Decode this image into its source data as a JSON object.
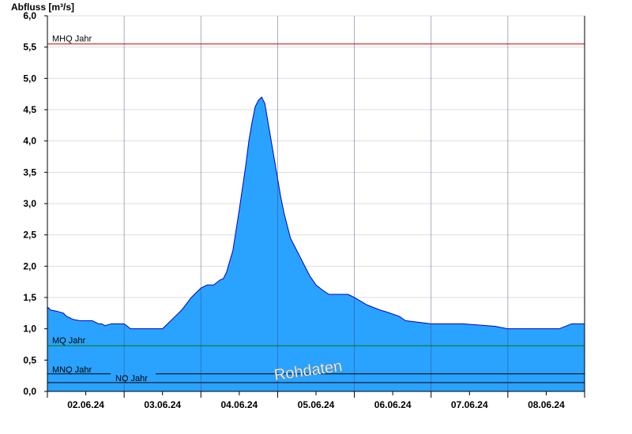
{
  "chart_data": {
    "type": "area",
    "ylabel": "Abfluss [m³/s]",
    "xlabel": "",
    "ylim": [
      0,
      6.0
    ],
    "yticks": [
      0.0,
      0.5,
      1.0,
      1.5,
      2.0,
      2.5,
      3.0,
      3.5,
      4.0,
      4.5,
      5.0,
      5.5,
      6.0
    ],
    "ytick_labels": [
      "0,0",
      "0,5",
      "1,0",
      "1,5",
      "2,0",
      "2,5",
      "3,0",
      "3,5",
      "4,0",
      "4,5",
      "5,0",
      "5,5",
      "6,0"
    ],
    "xlim_hours": [
      0,
      168
    ],
    "xtick_labels": [
      "02.06.24",
      "03.06.24",
      "04.06.24",
      "05.06.24",
      "06.06.24",
      "07.06.24",
      "08.06.24"
    ],
    "grid": true,
    "colors": {
      "area_fill": "#29a3ff",
      "area_line": "#0000cc",
      "mhq_line": "#cc0000",
      "mq_line": "#007a00",
      "nq_line": "#000000",
      "grid": "#dddddd"
    },
    "reference_lines": [
      {
        "label": "MHQ Jahr",
        "value": 5.55
      },
      {
        "label": "MQ Jahr",
        "value": 0.73
      },
      {
        "label": "MNQ Jahr",
        "value": 0.28
      },
      {
        "label": "NQ Jahr",
        "value": 0.14
      }
    ],
    "series": [
      {
        "x_hours": [
          0,
          1,
          3,
          5,
          6,
          8,
          10,
          14,
          16,
          17,
          18,
          20,
          24,
          26,
          28,
          30,
          33,
          36,
          40,
          42,
          45,
          48,
          50,
          52,
          54,
          55,
          56,
          58,
          60,
          62,
          63,
          64,
          65,
          66,
          67,
          68,
          69,
          70,
          71,
          72,
          73,
          74,
          75,
          76,
          78,
          80,
          82,
          84,
          86,
          88,
          90,
          92,
          94,
          96,
          100,
          104,
          106,
          110,
          112,
          120,
          130,
          140,
          144,
          160,
          164,
          168
        ],
        "values": [
          1.35,
          1.3,
          1.28,
          1.25,
          1.2,
          1.15,
          1.13,
          1.13,
          1.08,
          1.08,
          1.05,
          1.08,
          1.08,
          1.0,
          1.0,
          1.0,
          1.0,
          1.0,
          1.2,
          1.3,
          1.5,
          1.65,
          1.7,
          1.7,
          1.78,
          1.8,
          1.9,
          2.25,
          2.9,
          3.6,
          4.0,
          4.3,
          4.55,
          4.65,
          4.7,
          4.6,
          4.3,
          4.0,
          3.7,
          3.4,
          3.1,
          2.85,
          2.65,
          2.45,
          2.25,
          2.05,
          1.85,
          1.7,
          1.62,
          1.55,
          1.55,
          1.55,
          1.55,
          1.5,
          1.38,
          1.3,
          1.27,
          1.2,
          1.13,
          1.08,
          1.08,
          1.04,
          1.0,
          1.0,
          1.08,
          1.08
        ]
      }
    ],
    "watermark": "Rohdaten"
  }
}
